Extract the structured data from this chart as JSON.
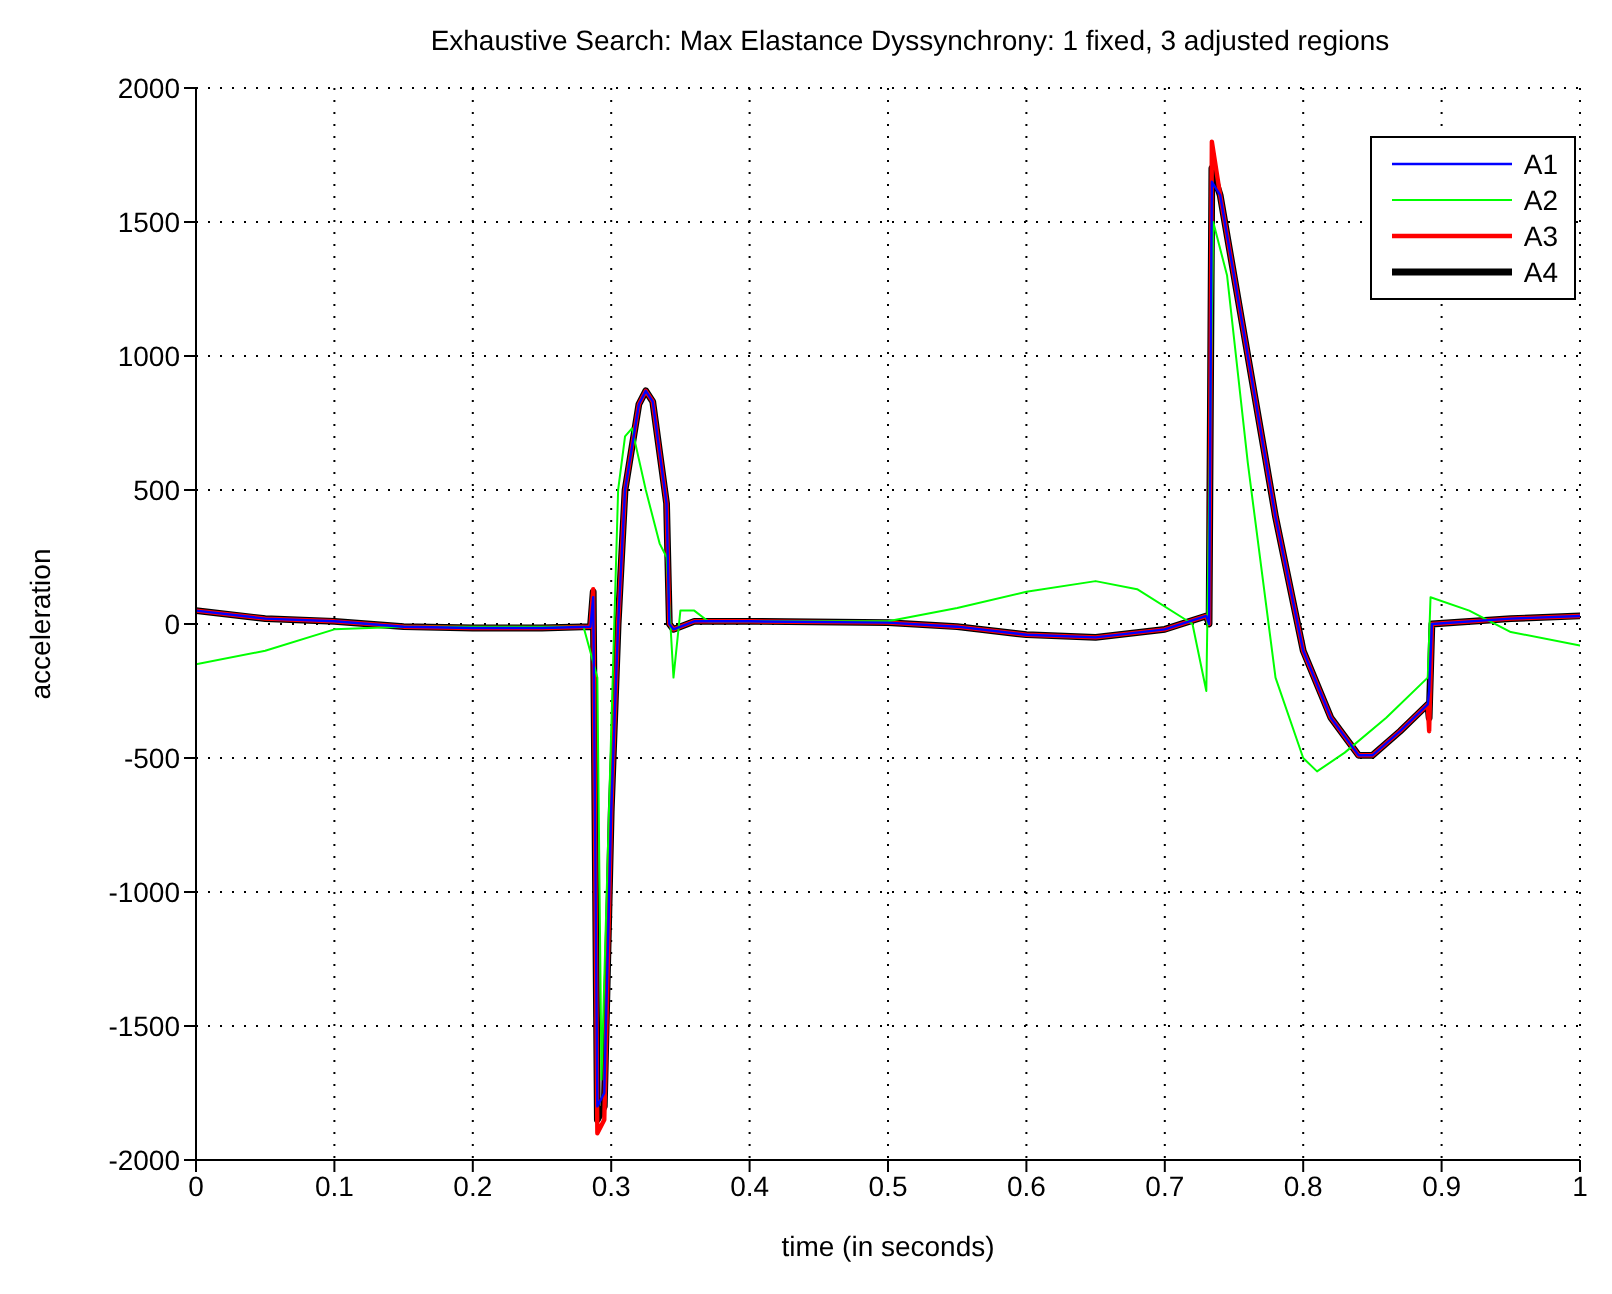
{
  "chart_data": {
    "type": "line",
    "title": "Exhaustive Search: Max Elastance Dyssynchrony: 1 fixed, 3 adjusted regions",
    "xlabel": "time (in seconds)",
    "ylabel": "acceleration",
    "xlim": [
      0,
      1
    ],
    "xticks": [
      0,
      0.1,
      0.2,
      0.3,
      0.4,
      0.5,
      0.6,
      0.7,
      0.8,
      0.9,
      1
    ],
    "ylim": [
      -2000,
      2000
    ],
    "yticks": [
      -2000,
      -1500,
      -1000,
      -500,
      0,
      500,
      1000,
      1500,
      2000
    ],
    "grid": true,
    "legend": "top right",
    "line_style": "solid",
    "marker": "none",
    "series": [
      {
        "name": "A1",
        "color": "#0000ff",
        "x": [
          0,
          0.05,
          0.1,
          0.15,
          0.2,
          0.25,
          0.285,
          0.287,
          0.29,
          0.295,
          0.3,
          0.305,
          0.31,
          0.32,
          0.325,
          0.33,
          0.34,
          0.342,
          0.345,
          0.36,
          0.4,
          0.5,
          0.55,
          0.6,
          0.65,
          0.7,
          0.73,
          0.732,
          0.734,
          0.74,
          0.76,
          0.78,
          0.8,
          0.82,
          0.84,
          0.85,
          0.87,
          0.89,
          0.891,
          0.893,
          0.95,
          1
        ],
        "values": [
          50,
          20,
          10,
          -10,
          -15,
          -15,
          -10,
          100,
          -1800,
          -1750,
          -700,
          0,
          500,
          820,
          870,
          830,
          450,
          0,
          -20,
          10,
          10,
          5,
          -10,
          -40,
          -50,
          -20,
          30,
          0,
          1650,
          1600,
          1000,
          400,
          -100,
          -350,
          -490,
          -490,
          -400,
          -300,
          -250,
          0,
          20,
          30
        ]
      },
      {
        "name": "A2",
        "color": "#00ff00",
        "x": [
          0,
          0.05,
          0.1,
          0.15,
          0.28,
          0.29,
          0.293,
          0.3,
          0.305,
          0.31,
          0.315,
          0.325,
          0.335,
          0.34,
          0.345,
          0.35,
          0.36,
          0.37,
          0.5,
          0.55,
          0.6,
          0.65,
          0.68,
          0.72,
          0.73,
          0.735,
          0.745,
          0.76,
          0.78,
          0.8,
          0.81,
          0.83,
          0.86,
          0.89,
          0.892,
          0.92,
          0.95,
          1
        ],
        "values": [
          -150,
          -100,
          -20,
          -10,
          -10,
          -200,
          -1700,
          -400,
          500,
          700,
          730,
          500,
          300,
          250,
          -200,
          50,
          50,
          10,
          10,
          60,
          120,
          160,
          130,
          0,
          -250,
          1500,
          1300,
          600,
          -200,
          -500,
          -550,
          -480,
          -350,
          -200,
          100,
          50,
          -30,
          -80
        ]
      },
      {
        "name": "A3",
        "color": "#ff0000",
        "x": [
          0,
          0.05,
          0.1,
          0.15,
          0.2,
          0.25,
          0.285,
          0.287,
          0.29,
          0.295,
          0.3,
          0.305,
          0.31,
          0.32,
          0.325,
          0.33,
          0.34,
          0.342,
          0.345,
          0.36,
          0.4,
          0.5,
          0.55,
          0.6,
          0.65,
          0.7,
          0.73,
          0.732,
          0.734,
          0.74,
          0.76,
          0.78,
          0.8,
          0.82,
          0.84,
          0.85,
          0.87,
          0.89,
          0.891,
          0.893,
          0.95,
          1
        ],
        "values": [
          50,
          20,
          10,
          -10,
          -15,
          -15,
          -10,
          130,
          -1900,
          -1850,
          -700,
          0,
          500,
          820,
          870,
          830,
          450,
          0,
          -20,
          10,
          10,
          5,
          -10,
          -40,
          -50,
          -20,
          30,
          0,
          1800,
          1600,
          1000,
          400,
          -100,
          -350,
          -490,
          -490,
          -400,
          -300,
          -400,
          0,
          20,
          30
        ]
      },
      {
        "name": "A4",
        "color": "#000000",
        "x": [
          0,
          0.05,
          0.1,
          0.15,
          0.2,
          0.25,
          0.285,
          0.287,
          0.29,
          0.295,
          0.3,
          0.305,
          0.31,
          0.32,
          0.325,
          0.33,
          0.34,
          0.342,
          0.345,
          0.36,
          0.4,
          0.5,
          0.55,
          0.6,
          0.65,
          0.7,
          0.73,
          0.732,
          0.734,
          0.74,
          0.76,
          0.78,
          0.8,
          0.82,
          0.84,
          0.85,
          0.87,
          0.89,
          0.891,
          0.893,
          0.95,
          1
        ],
        "values": [
          50,
          20,
          10,
          -10,
          -15,
          -15,
          -10,
          120,
          -1850,
          -1800,
          -700,
          0,
          500,
          820,
          870,
          830,
          450,
          0,
          -20,
          10,
          10,
          5,
          -10,
          -40,
          -50,
          -20,
          30,
          0,
          1700,
          1600,
          1000,
          400,
          -100,
          -350,
          -490,
          -490,
          -400,
          -300,
          -350,
          0,
          20,
          30
        ]
      }
    ]
  }
}
